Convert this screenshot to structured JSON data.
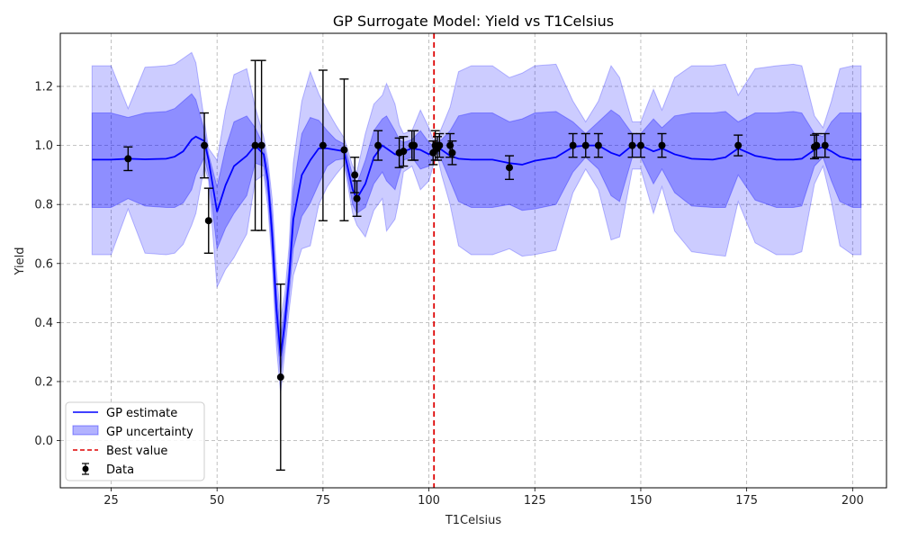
{
  "chart_data": {
    "type": "line",
    "title": "GP Surrogate Model: Yield vs T1Celsius",
    "xlabel": "T1Celsius",
    "ylabel": "Yield",
    "xlim": [
      13,
      208
    ],
    "ylim": [
      -0.16,
      1.38
    ],
    "x_ticks": [
      25,
      50,
      75,
      100,
      125,
      150,
      175,
      200
    ],
    "y_ticks": [
      0.0,
      0.2,
      0.4,
      0.6,
      0.8,
      1.0,
      1.2
    ],
    "grid": true,
    "legend_position": "lower-left",
    "legend": {
      "gp_estimate": "GP estimate",
      "gp_uncertainty": "GP uncertainty",
      "best_value": "Best value",
      "data": "Data"
    },
    "colors": {
      "gp_line": "#0000ff",
      "band": "#0000ff",
      "best": "#dd0000",
      "data": "#000000"
    },
    "best_value_x": 101.2,
    "gp_curve": {
      "x": [
        20.5,
        25,
        29,
        33,
        38,
        40,
        42,
        44,
        45,
        47,
        48,
        50,
        52,
        54,
        57,
        59,
        61,
        62,
        63,
        64,
        65,
        66,
        67,
        68,
        70,
        72,
        74,
        76,
        78,
        80,
        82,
        83,
        85,
        87,
        89,
        90,
        92,
        93,
        94,
        96,
        98,
        100,
        101,
        102,
        103,
        105,
        107,
        110,
        115,
        119,
        122,
        125,
        130,
        134,
        137,
        140,
        143,
        145,
        148,
        150,
        153,
        155,
        158,
        162,
        167,
        170,
        173,
        177,
        182,
        186,
        188,
        191,
        193,
        195,
        197,
        200,
        202
      ],
      "mean": [
        0.952,
        0.952,
        0.955,
        0.953,
        0.955,
        0.962,
        0.98,
        1.02,
        1.03,
        1.015,
        0.95,
        0.775,
        0.865,
        0.93,
        0.965,
        1.0,
        0.97,
        0.88,
        0.7,
        0.45,
        0.285,
        0.4,
        0.55,
        0.75,
        0.9,
        0.95,
        0.99,
        0.99,
        0.985,
        0.98,
        0.85,
        0.82,
        0.87,
        0.96,
        1.0,
        0.99,
        0.97,
        0.97,
        0.98,
        0.99,
        0.985,
        0.97,
        0.98,
        0.995,
        0.985,
        0.965,
        0.955,
        0.952,
        0.952,
        0.94,
        0.935,
        0.948,
        0.96,
        0.995,
        1.0,
        1.0,
        0.975,
        0.965,
        1.0,
        1.0,
        0.98,
        0.99,
        0.97,
        0.955,
        0.952,
        0.96,
        0.99,
        0.965,
        0.952,
        0.952,
        0.955,
        0.985,
        0.995,
        0.98,
        0.962,
        0.952,
        0.952
      ],
      "inner_upper": [
        1.11,
        1.11,
        1.095,
        1.11,
        1.115,
        1.125,
        1.15,
        1.175,
        1.155,
        1.05,
        0.97,
        0.86,
        0.99,
        1.08,
        1.1,
        1.06,
        1.0,
        0.92,
        0.76,
        0.52,
        0.35,
        0.45,
        0.6,
        0.85,
        1.04,
        1.095,
        1.085,
        1.05,
        1.02,
        1.005,
        0.9,
        0.87,
        0.95,
        1.05,
        1.09,
        1.1,
        1.05,
        1.02,
        1.01,
        1.02,
        1.05,
        1.01,
        1.0,
        1.01,
        1.02,
        1.05,
        1.1,
        1.11,
        1.11,
        1.08,
        1.09,
        1.11,
        1.115,
        1.08,
        1.04,
        1.08,
        1.12,
        1.1,
        1.04,
        1.04,
        1.09,
        1.06,
        1.1,
        1.11,
        1.11,
        1.115,
        1.08,
        1.11,
        1.11,
        1.115,
        1.11,
        1.04,
        1.03,
        1.08,
        1.11,
        1.11,
        1.11
      ],
      "inner_lower": [
        0.79,
        0.79,
        0.82,
        0.795,
        0.79,
        0.79,
        0.805,
        0.85,
        0.9,
        0.96,
        0.9,
        0.65,
        0.72,
        0.77,
        0.83,
        0.94,
        0.93,
        0.83,
        0.64,
        0.38,
        0.22,
        0.35,
        0.49,
        0.65,
        0.76,
        0.805,
        0.87,
        0.93,
        0.95,
        0.955,
        0.8,
        0.77,
        0.79,
        0.87,
        0.91,
        0.88,
        0.85,
        0.9,
        0.95,
        0.96,
        0.92,
        0.93,
        0.96,
        0.98,
        0.95,
        0.88,
        0.81,
        0.79,
        0.79,
        0.8,
        0.78,
        0.785,
        0.8,
        0.91,
        0.96,
        0.92,
        0.83,
        0.81,
        0.96,
        0.96,
        0.87,
        0.92,
        0.84,
        0.795,
        0.79,
        0.79,
        0.9,
        0.815,
        0.79,
        0.79,
        0.795,
        0.93,
        0.96,
        0.88,
        0.81,
        0.79,
        0.79
      ],
      "outer_upper": [
        1.27,
        1.27,
        1.125,
        1.265,
        1.27,
        1.275,
        1.295,
        1.315,
        1.28,
        1.085,
        0.99,
        0.95,
        1.12,
        1.24,
        1.26,
        1.13,
        1.03,
        0.95,
        0.82,
        0.58,
        0.41,
        0.5,
        0.66,
        0.94,
        1.15,
        1.25,
        1.175,
        1.12,
        1.07,
        1.025,
        0.93,
        0.91,
        1.04,
        1.14,
        1.17,
        1.21,
        1.14,
        1.07,
        1.04,
        1.05,
        1.12,
        1.06,
        1.02,
        1.025,
        1.06,
        1.13,
        1.25,
        1.27,
        1.27,
        1.23,
        1.245,
        1.27,
        1.275,
        1.15,
        1.08,
        1.15,
        1.27,
        1.23,
        1.08,
        1.08,
        1.19,
        1.12,
        1.23,
        1.27,
        1.27,
        1.275,
        1.17,
        1.26,
        1.27,
        1.275,
        1.27,
        1.1,
        1.06,
        1.15,
        1.26,
        1.27,
        1.27
      ],
      "outer_lower": [
        0.63,
        0.63,
        0.785,
        0.635,
        0.63,
        0.635,
        0.665,
        0.73,
        0.77,
        0.93,
        0.88,
        0.52,
        0.58,
        0.62,
        0.7,
        0.88,
        0.9,
        0.79,
        0.6,
        0.32,
        0.16,
        0.3,
        0.44,
        0.56,
        0.65,
        0.66,
        0.8,
        0.86,
        0.9,
        0.935,
        0.77,
        0.73,
        0.69,
        0.78,
        0.82,
        0.71,
        0.75,
        0.82,
        0.91,
        0.93,
        0.85,
        0.88,
        0.93,
        0.965,
        0.9,
        0.8,
        0.66,
        0.63,
        0.63,
        0.65,
        0.625,
        0.63,
        0.645,
        0.84,
        0.92,
        0.85,
        0.68,
        0.69,
        0.92,
        0.92,
        0.77,
        0.86,
        0.71,
        0.64,
        0.63,
        0.625,
        0.81,
        0.67,
        0.63,
        0.63,
        0.64,
        0.87,
        0.93,
        0.81,
        0.66,
        0.63,
        0.63
      ]
    },
    "data_points": {
      "x": [
        29,
        47,
        48,
        59,
        60.5,
        65,
        75,
        80,
        82.5,
        83,
        88,
        93,
        94,
        96,
        96.5,
        101,
        101.5,
        102,
        102.5,
        105,
        105.5,
        119,
        134,
        137,
        140,
        148,
        150,
        155,
        173,
        191,
        191.5,
        193.5
      ],
      "y": [
        0.955,
        1.0,
        0.745,
        1.0,
        1.0,
        0.215,
        1.0,
        0.985,
        0.9,
        0.82,
        1.0,
        0.975,
        0.98,
        1.0,
        1.0,
        0.975,
        1.0,
        0.99,
        1.0,
        1.0,
        0.975,
        0.925,
        1.0,
        1.0,
        1.0,
        1.0,
        1.0,
        1.0,
        1.0,
        0.995,
        1.0,
        1.0
      ],
      "err": [
        0.04,
        0.11,
        0.11,
        0.288,
        0.288,
        0.315,
        0.255,
        0.24,
        0.06,
        0.06,
        0.05,
        0.05,
        0.05,
        0.05,
        0.05,
        0.04,
        0.05,
        0.04,
        0.04,
        0.04,
        0.04,
        0.04,
        0.04,
        0.04,
        0.04,
        0.04,
        0.04,
        0.04,
        0.035,
        0.04,
        0.04,
        0.04
      ]
    }
  }
}
